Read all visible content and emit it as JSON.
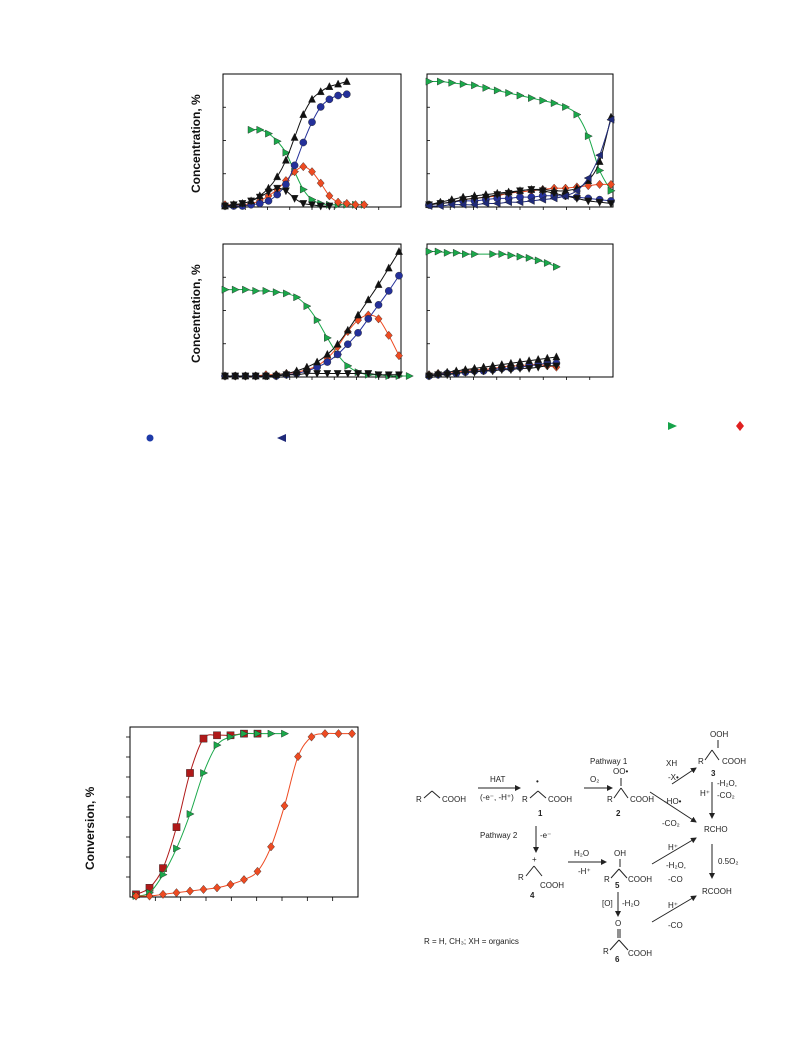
{
  "figure_top": {
    "ylabel": "Concentration, %",
    "legend_colors": {
      "green": "#16a34a",
      "red": "#e02020",
      "blue": "#1e3aa8",
      "navy": "#1f2a7a"
    }
  },
  "figure_bottom": {
    "ylabel": "Conversion, %"
  },
  "chart_data": [
    {
      "type": "line",
      "panel": "top-left",
      "ylabel": "Concentration, %",
      "x": [
        0,
        1,
        2,
        3,
        4,
        5,
        6,
        7,
        8,
        9,
        10,
        11,
        12,
        13,
        14,
        15,
        16
      ],
      "series": [
        {
          "marker": "triangle-right",
          "color": "#1aa84a",
          "values": [
            null,
            null,
            null,
            60,
            60,
            57,
            51,
            42,
            27,
            13,
            5,
            2,
            1,
            1,
            1,
            1,
            1
          ]
        },
        {
          "marker": "diamond",
          "color": "#ee4b22",
          "values": [
            1,
            1,
            1,
            2,
            4,
            8,
            13,
            20,
            27,
            31,
            27,
            18,
            8,
            3,
            2,
            1,
            1
          ]
        },
        {
          "marker": "circle",
          "color": "#24309a",
          "values": [
            0,
            0,
            0,
            1,
            2,
            4,
            9,
            17,
            32,
            50,
            66,
            78,
            84,
            87,
            88,
            null,
            null
          ]
        },
        {
          "marker": "triangle-up",
          "color": "#111111",
          "values": [
            0,
            1,
            2,
            4,
            8,
            14,
            23,
            36,
            54,
            72,
            84,
            90,
            94,
            96,
            98,
            null,
            null
          ]
        },
        {
          "marker": "triangle-down",
          "color": "#111111",
          "values": [
            0,
            1,
            2,
            4,
            7,
            11,
            14,
            12,
            6,
            2,
            1,
            0,
            0,
            null,
            null,
            null,
            null
          ]
        }
      ]
    },
    {
      "type": "line",
      "panel": "top-right",
      "x": [
        0,
        1,
        2,
        3,
        4,
        5,
        6,
        7,
        8,
        9,
        10,
        11,
        12,
        13,
        14,
        15,
        16
      ],
      "series": [
        {
          "marker": "triangle-right",
          "color": "#1aa84a",
          "values": [
            98,
            98,
            97,
            96,
            95,
            93,
            91,
            89,
            87,
            85,
            83,
            81,
            78,
            72,
            55,
            28,
            12
          ]
        },
        {
          "marker": "diamond",
          "color": "#ee4b22",
          "values": [
            1,
            2,
            3,
            5,
            6,
            7,
            8,
            10,
            11,
            12,
            13,
            14,
            14,
            15,
            16,
            17,
            17
          ]
        },
        {
          "marker": "circle",
          "color": "#24309a",
          "values": [
            1,
            2,
            3,
            4,
            4,
            5,
            6,
            6,
            7,
            7,
            8,
            8,
            8,
            7,
            6,
            5,
            4
          ]
        },
        {
          "marker": "triangle-up",
          "color": "#111111",
          "values": [
            1,
            3,
            5,
            7,
            8,
            9,
            10,
            11,
            12,
            13,
            13,
            12,
            12,
            14,
            20,
            35,
            70
          ]
        },
        {
          "marker": "triangle-down",
          "color": "#111111",
          "values": [
            1,
            2,
            3,
            5,
            6,
            7,
            9,
            10,
            12,
            13,
            12,
            10,
            8,
            6,
            4,
            3,
            2
          ]
        },
        {
          "marker": "triangle-left",
          "color": "#1f2a7a",
          "values": [
            0,
            0,
            1,
            1,
            1,
            2,
            2,
            3,
            3,
            4,
            5,
            6,
            8,
            12,
            22,
            40,
            68
          ]
        }
      ]
    },
    {
      "type": "line",
      "panel": "bottom-left",
      "ylabel": "Concentration, %",
      "x": [
        0,
        1,
        2,
        3,
        4,
        5,
        6,
        7,
        8,
        9,
        10,
        11,
        12,
        13,
        14,
        15,
        16,
        17,
        18,
        19,
        20,
        21,
        22
      ],
      "series": [
        {
          "marker": "triangle-right",
          "color": "#1aa84a",
          "values": [
            68,
            68,
            68,
            67,
            67,
            66,
            65,
            62,
            55,
            44,
            30,
            17,
            8,
            3,
            1,
            1,
            0,
            0,
            0,
            null,
            null,
            null,
            null
          ]
        },
        {
          "marker": "diamond",
          "color": "#ee4b22",
          "values": [
            0,
            0,
            0,
            0,
            1,
            1,
            2,
            3,
            5,
            8,
            14,
            23,
            35,
            44,
            48,
            45,
            32,
            16,
            null,
            null,
            null,
            null,
            null
          ]
        },
        {
          "marker": "circle",
          "color": "#24309a",
          "values": [
            0,
            0,
            0,
            0,
            0,
            0,
            1,
            2,
            4,
            7,
            11,
            17,
            25,
            34,
            45,
            56,
            67,
            79,
            null,
            null,
            null,
            null,
            null
          ]
        },
        {
          "marker": "triangle-up",
          "color": "#111111",
          "values": [
            0,
            0,
            0,
            0,
            0,
            1,
            2,
            4,
            7,
            11,
            17,
            25,
            36,
            48,
            60,
            72,
            85,
            98,
            null,
            null,
            null,
            null,
            null
          ]
        },
        {
          "marker": "triangle-down",
          "color": "#111111",
          "values": [
            0,
            0,
            0,
            0,
            0,
            0,
            1,
            1,
            2,
            2,
            2,
            2,
            2,
            2,
            2,
            1,
            1,
            1,
            null,
            null,
            null,
            null,
            null
          ]
        }
      ]
    },
    {
      "type": "line",
      "panel": "bottom-right",
      "x": [
        0,
        1,
        2,
        3,
        4,
        5,
        6,
        7,
        8,
        9,
        10,
        11,
        12,
        13,
        14,
        15,
        16
      ],
      "series": [
        {
          "marker": "triangle-right",
          "color": "#1aa84a",
          "values": [
            98,
            98,
            97,
            97,
            96,
            96,
            null,
            96,
            96,
            95,
            94,
            93,
            91,
            89,
            86,
            null,
            null
          ]
        },
        {
          "marker": "diamond",
          "color": "#ee4b22",
          "values": [
            1,
            2,
            2,
            3,
            4,
            5,
            5,
            6,
            7,
            8,
            8,
            9,
            9,
            8,
            7,
            null,
            null
          ]
        },
        {
          "marker": "circle",
          "color": "#24309a",
          "values": [
            0,
            1,
            2,
            2,
            3,
            4,
            4,
            5,
            6,
            6,
            7,
            8,
            9,
            10,
            10,
            null,
            null
          ]
        },
        {
          "marker": "triangle-up",
          "color": "#111111",
          "values": [
            1,
            2,
            3,
            4,
            5,
            6,
            7,
            8,
            9,
            10,
            11,
            12,
            13,
            14,
            15,
            null,
            null
          ]
        },
        {
          "marker": "triangle-down",
          "color": "#111111",
          "values": [
            0,
            1,
            1,
            2,
            3,
            3,
            4,
            4,
            5,
            5,
            6,
            6,
            7,
            8,
            8,
            null,
            null
          ]
        }
      ]
    },
    {
      "type": "line",
      "panel": "conversion",
      "ylabel": "Conversion, %",
      "series": [
        {
          "marker": "square",
          "color": "#b01919",
          "x": [
            0,
            1,
            2,
            3,
            4,
            5,
            6,
            7,
            8,
            9
          ],
          "values": [
            1,
            5,
            17,
            42,
            75,
            96,
            98,
            98,
            99,
            99
          ]
        },
        {
          "marker": "triangle-right",
          "color": "#1aa84a",
          "x": [
            0,
            1,
            2,
            3,
            4,
            5,
            6,
            7,
            8,
            9,
            10,
            11
          ],
          "values": [
            0,
            2,
            13,
            29,
            50,
            75,
            92,
            97,
            99,
            99,
            99,
            99
          ]
        },
        {
          "marker": "diamond",
          "color": "#ee4b22",
          "x": [
            0,
            1,
            2,
            3,
            4,
            5,
            6,
            7,
            8,
            9,
            10,
            11,
            12,
            13,
            14,
            15,
            16
          ],
          "values": [
            0,
            0,
            1,
            2,
            3,
            4,
            5,
            7,
            10,
            15,
            30,
            55,
            85,
            97,
            99,
            99,
            99
          ]
        }
      ]
    }
  ],
  "scheme": {
    "left_label": "COOH",
    "r": "R",
    "hat": "HAT",
    "hat_sub": "(-e⁻, -H⁺)",
    "o2": "O₂",
    "pathway1": "Pathway 1",
    "pathway2": "Pathway 2",
    "neg_e": "-e⁻",
    "h2o": "H₂O",
    "neg_h": "-H⁺",
    "xh": "XH",
    "neg_x": "-X•",
    "neg_ho": "-HO•",
    "neg_co2": "-CO₂",
    "h_plus": "H⁺",
    "neg_h2o_co2_a": "-H₂O,",
    "neg_h2o_co2_b": "-CO₂",
    "rcho": "RCHO",
    "half_o2": "0.5O₂",
    "neg_h2o": "-H₂O,",
    "neg_co": "-CO",
    "rcooh": "RCOOH",
    "oxid": "[O]",
    "oxid_h2o": "-H₂O",
    "ooh": "OOH",
    "oo_dot": "OO•",
    "oh": "OH",
    "o": "O",
    "cooh": "COOH",
    "plus": "+",
    "dot": "•",
    "n1": "1",
    "n2": "2",
    "n3": "3",
    "n4": "4",
    "n5": "5",
    "n6": "6",
    "footnote": "R = H, CH₃; XH = organics"
  }
}
